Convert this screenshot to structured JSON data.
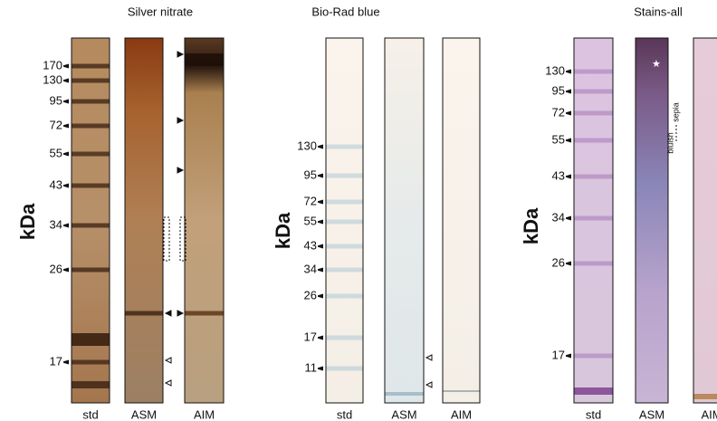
{
  "panels": [
    {
      "title": "Silver nitrate",
      "axis_label": "kDa",
      "markers": [
        "170",
        "130",
        "95",
        "72",
        "55",
        "43",
        "34",
        "26",
        "17"
      ],
      "lanes": [
        "std",
        "ASM",
        "AIM"
      ]
    },
    {
      "title": "Bio-Rad blue",
      "axis_label": "kDa",
      "markers": [
        "130",
        "95",
        "72",
        "55",
        "43",
        "34",
        "26",
        "17",
        "11"
      ],
      "lanes": [
        "std",
        "ASM",
        "AIM"
      ]
    },
    {
      "title": "Stains-all",
      "axis_label": "kDa",
      "markers": [
        "130",
        "95",
        "72",
        "55",
        "43",
        "34",
        "26",
        "17"
      ],
      "lanes": [
        "std",
        "ASM",
        "AIM"
      ],
      "annotations": [
        "sepia",
        "bluish"
      ]
    }
  ]
}
